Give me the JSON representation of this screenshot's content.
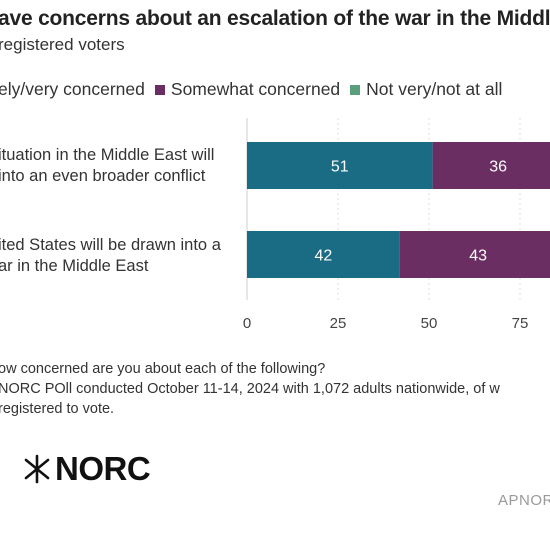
{
  "title": "ave concerns about an escalation of the war in the Middle",
  "subtitle": "registered voters",
  "legend": [
    {
      "label": "ely/very concerned",
      "color": "#1a6b84"
    },
    {
      "label": "Somewhat concerned",
      "color": "#6b2e63"
    },
    {
      "label": "Not very/not at all",
      "color": "#5a9e7c"
    }
  ],
  "chart_data": {
    "type": "bar",
    "orientation": "horizontal",
    "stacked": true,
    "categories": [
      [
        "ituation in the Middle East will",
        "into an even broader conflict"
      ],
      [
        "ited States will be drawn into a",
        "ar in the Middle East"
      ]
    ],
    "series": [
      {
        "name": "ely/very concerned",
        "color": "#1a6b84",
        "values": [
          51,
          42
        ]
      },
      {
        "name": "Somewhat concerned",
        "color": "#6b2e63",
        "values": [
          36,
          43
        ]
      },
      {
        "name": "Not very/not at all",
        "color": "#5a9e7c",
        "values": [
          null,
          null
        ]
      }
    ],
    "xticks": [
      0,
      25,
      50,
      75
    ],
    "grid": true
  },
  "notes": [
    "ow concerned are you about each of the following?",
    "NORC POll conducted October 11-14, 2024 with 1,072 adults nationwide, of w",
    "registered to vote."
  ],
  "logo_text": "NORC",
  "brand_text": "APNOR"
}
